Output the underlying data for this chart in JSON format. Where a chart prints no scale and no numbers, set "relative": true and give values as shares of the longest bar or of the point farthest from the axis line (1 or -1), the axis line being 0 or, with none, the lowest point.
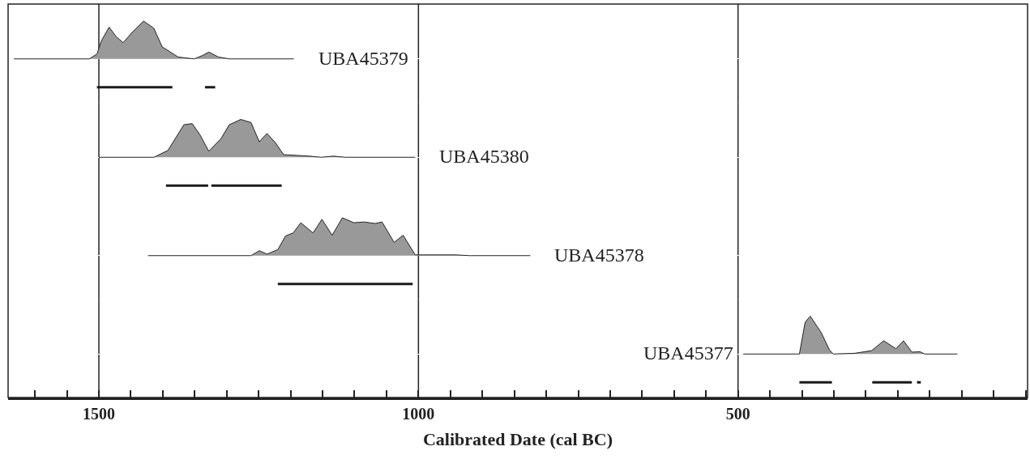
{
  "chart_data": [
    {
      "type": "area",
      "relative": true,
      "xlim": [
        1642,
        47
      ],
      "xticks": [
        1500,
        1000,
        500
      ],
      "grid": "x",
      "tick_labels": false,
      "series": [
        {
          "name": "UBA45379",
          "color": "#999999",
          "x": [
            1633,
            1515,
            1503,
            1496,
            1484,
            1473,
            1462,
            1448,
            1430,
            1414,
            1401,
            1376,
            1351,
            1338,
            1328,
            1313,
            1296,
            1195
          ],
          "values": [
            0,
            0,
            0.13,
            0.48,
            0.84,
            0.59,
            0.43,
            0.7,
            1.0,
            0.81,
            0.32,
            0.05,
            0,
            0.09,
            0.18,
            0.05,
            0,
            0
          ]
        },
        {
          "type": "line",
          "color": "#1a1a1a",
          "x": [
            1503,
            1385,
            1360,
            1334,
            1318
          ],
          "values": [
            -0.75,
            -0.75,
            null,
            -0.75,
            -0.75
          ]
        }
      ]
    },
    {
      "type": "area",
      "relative": true,
      "xlim": [
        1642,
        47
      ],
      "xticks": [
        1500,
        1000,
        500
      ],
      "grid": "x",
      "tick_labels": false,
      "series": [
        {
          "name": "UBA45380",
          "color": "#999999",
          "x": [
            1500,
            1414,
            1392,
            1367,
            1354,
            1342,
            1328,
            1309,
            1296,
            1278,
            1262,
            1249,
            1237,
            1224,
            1211,
            1170,
            1152,
            1133,
            1114,
            1005
          ],
          "values": [
            0,
            0,
            0.18,
            0.86,
            0.89,
            0.6,
            0.16,
            0.49,
            0.86,
            1.0,
            0.92,
            0.41,
            0.63,
            0.39,
            0.07,
            0.03,
            0,
            0.03,
            0,
            0
          ]
        },
        {
          "type": "line",
          "color": "#1a1a1a",
          "x": [
            1395,
            1329,
            1326,
            1324,
            1214
          ],
          "values": [
            -0.75,
            -0.75,
            null,
            -0.75,
            -0.75
          ]
        }
      ]
    },
    {
      "type": "area",
      "relative": true,
      "xlim": [
        1642,
        47
      ],
      "xticks": [
        1500,
        1000,
        500
      ],
      "grid": "x",
      "tick_labels": false,
      "series": [
        {
          "name": "UBA45378",
          "color": "#999999",
          "x": [
            1423,
            1262,
            1249,
            1237,
            1220,
            1208,
            1196,
            1184,
            1165,
            1151,
            1135,
            1119,
            1101,
            1085,
            1068,
            1057,
            1038,
            1024,
            1005,
            942,
            920,
            825
          ],
          "values": [
            0,
            0,
            0.13,
            0.04,
            0.16,
            0.52,
            0.6,
            0.87,
            0.6,
            0.96,
            0.54,
            1.0,
            0.87,
            0.89,
            0.85,
            0.89,
            0.35,
            0.54,
            0.02,
            0.02,
            0,
            0
          ]
        },
        {
          "type": "line",
          "color": "#1a1a1a",
          "x": [
            1220,
            1009
          ],
          "values": [
            -0.75,
            -0.75
          ]
        }
      ]
    },
    {
      "type": "area",
      "relative": true,
      "xlim": [
        1642,
        47
      ],
      "grid": "x",
      "tick_labels": "x",
      "xlabel": "Calibrated Date (cal BC)",
      "xticks": [
        {
          "value": 1600,
          "label": null
        },
        {
          "value": 1550,
          "label": null
        },
        1500,
        {
          "value": 1450,
          "label": null
        },
        {
          "value": 1400,
          "label": null
        },
        {
          "value": 1350,
          "label": null
        },
        {
          "value": 1300,
          "label": null
        },
        {
          "value": 1250,
          "label": null
        },
        {
          "value": 1200,
          "label": null
        },
        {
          "value": 1150,
          "label": null
        },
        {
          "value": 1100,
          "label": null
        },
        {
          "value": 1050,
          "label": null
        },
        1000,
        {
          "value": 950,
          "label": null
        },
        {
          "value": 900,
          "label": null
        },
        {
          "value": 850,
          "label": null
        },
        {
          "value": 800,
          "label": null
        },
        {
          "value": 750,
          "label": null
        },
        {
          "value": 700,
          "label": null
        },
        {
          "value": 650,
          "label": null
        },
        {
          "value": 600,
          "label": null
        },
        {
          "value": 550,
          "label": null
        },
        500,
        {
          "value": 450,
          "label": null
        },
        {
          "value": 400,
          "label": null
        },
        {
          "value": 350,
          "label": null
        },
        {
          "value": 300,
          "label": null
        },
        {
          "value": 250,
          "label": null
        },
        {
          "value": 200,
          "label": null
        },
        {
          "value": 150,
          "label": null
        },
        {
          "value": 100,
          "label": null
        },
        {
          "value": 50,
          "label": null
        }
      ],
      "series": [
        {
          "name": "UBA45377",
          "color": "#999999",
          "x": [
            492,
            404,
            395,
            387,
            370,
            357,
            351,
            317,
            291,
            272,
            253,
            241,
            228,
            215,
            208,
            157
          ],
          "values": [
            0,
            0,
            0.84,
            1.0,
            0.57,
            0.11,
            0,
            0.02,
            0.09,
            0.35,
            0.14,
            0.35,
            0.05,
            0.06,
            0,
            0
          ]
        },
        {
          "type": "line",
          "color": "#1a1a1a",
          "x": [
            404,
            353,
            320,
            290,
            228,
            224,
            220,
            214
          ],
          "values": [
            -0.75,
            -0.75,
            null,
            -0.75,
            -0.75,
            null,
            -0.75,
            -0.75
          ]
        }
      ]
    }
  ]
}
